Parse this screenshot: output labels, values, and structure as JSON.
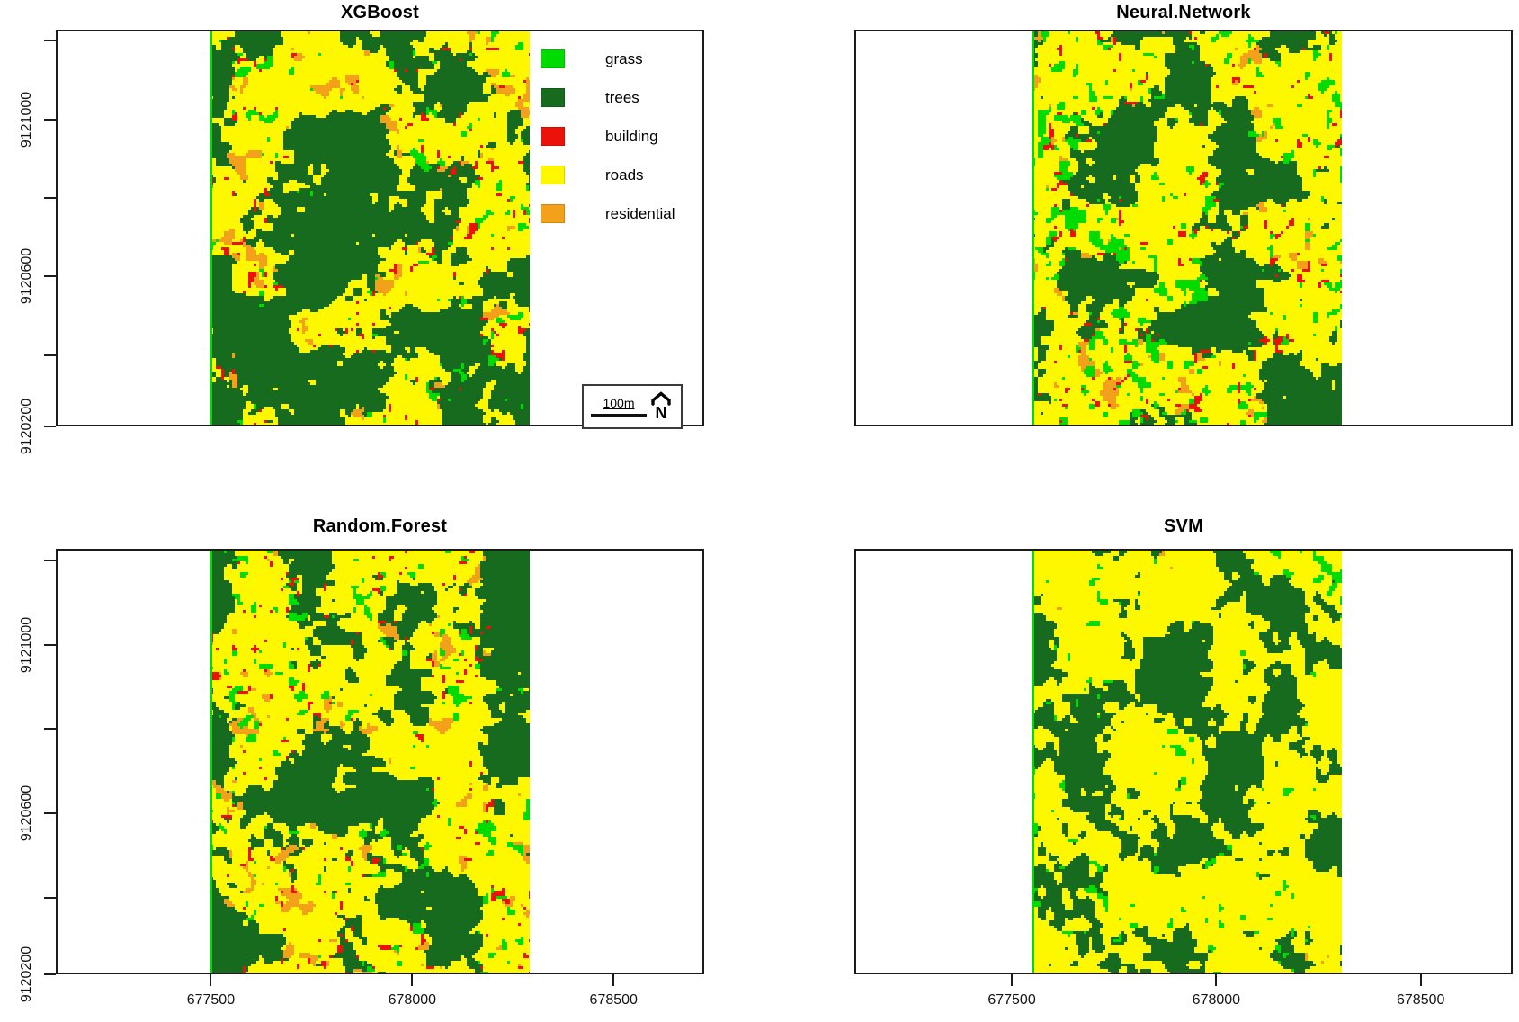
{
  "chart_data": {
    "type": "heatmap",
    "title": "",
    "panels": [
      {
        "id": "xgboost",
        "title": "XGBoost",
        "seed": 3,
        "class_mix": {
          "grass": 0.72,
          "trees": 0.95,
          "building": 0.7,
          "roads": 0.8,
          "residential": 0.75
        }
      },
      {
        "id": "neural-network",
        "title": "Neural.Network",
        "seed": 17,
        "class_mix": {
          "grass": 0.8,
          "trees": 0.92,
          "building": 0.7,
          "roads": 0.82,
          "residential": 0.73
        }
      },
      {
        "id": "random-forest",
        "title": "Random.Forest",
        "seed": 29,
        "class_mix": {
          "grass": 0.72,
          "trees": 1.0,
          "building": 0.67,
          "roads": 0.8,
          "residential": 0.73
        }
      },
      {
        "id": "svm",
        "title": "SVM",
        "seed": 41,
        "class_mix": {
          "grass": 0.82,
          "trees": 1.03,
          "building": 0.0,
          "roads": 0.95,
          "residential": 0.62
        }
      }
    ],
    "classes": [
      {
        "id": "grass",
        "label": "grass",
        "color": "#00DC00"
      },
      {
        "id": "trees",
        "label": "trees",
        "color": "#166B1E"
      },
      {
        "id": "building",
        "label": "building",
        "color": "#ED1209"
      },
      {
        "id": "roads",
        "label": "roads",
        "color": "#FDF800"
      },
      {
        "id": "residential",
        "label": "residential",
        "color": "#F3A01B"
      }
    ],
    "x_axis": {
      "range": [
        677115,
        678725
      ],
      "ticks": [
        {
          "value": 677500,
          "label": "677500"
        },
        {
          "value": 678000,
          "label": "678000"
        },
        {
          "value": 678500,
          "label": "678500"
        }
      ]
    },
    "y_axis": {
      "range_top": 9121228,
      "span": 1010,
      "ticks": [
        {
          "value": 9121200,
          "label": ""
        },
        {
          "value": 9121000,
          "label": "9121000"
        },
        {
          "value": 9120800,
          "label": ""
        },
        {
          "value": 9120600,
          "label": "9120600"
        },
        {
          "value": 9120400,
          "label": ""
        },
        {
          "value": 9120200,
          "label": "9120200"
        }
      ]
    },
    "scale_bar": {
      "label": "100m",
      "north_label": "N"
    },
    "legend": {
      "position": "inside-top-left-panel-right"
    }
  }
}
